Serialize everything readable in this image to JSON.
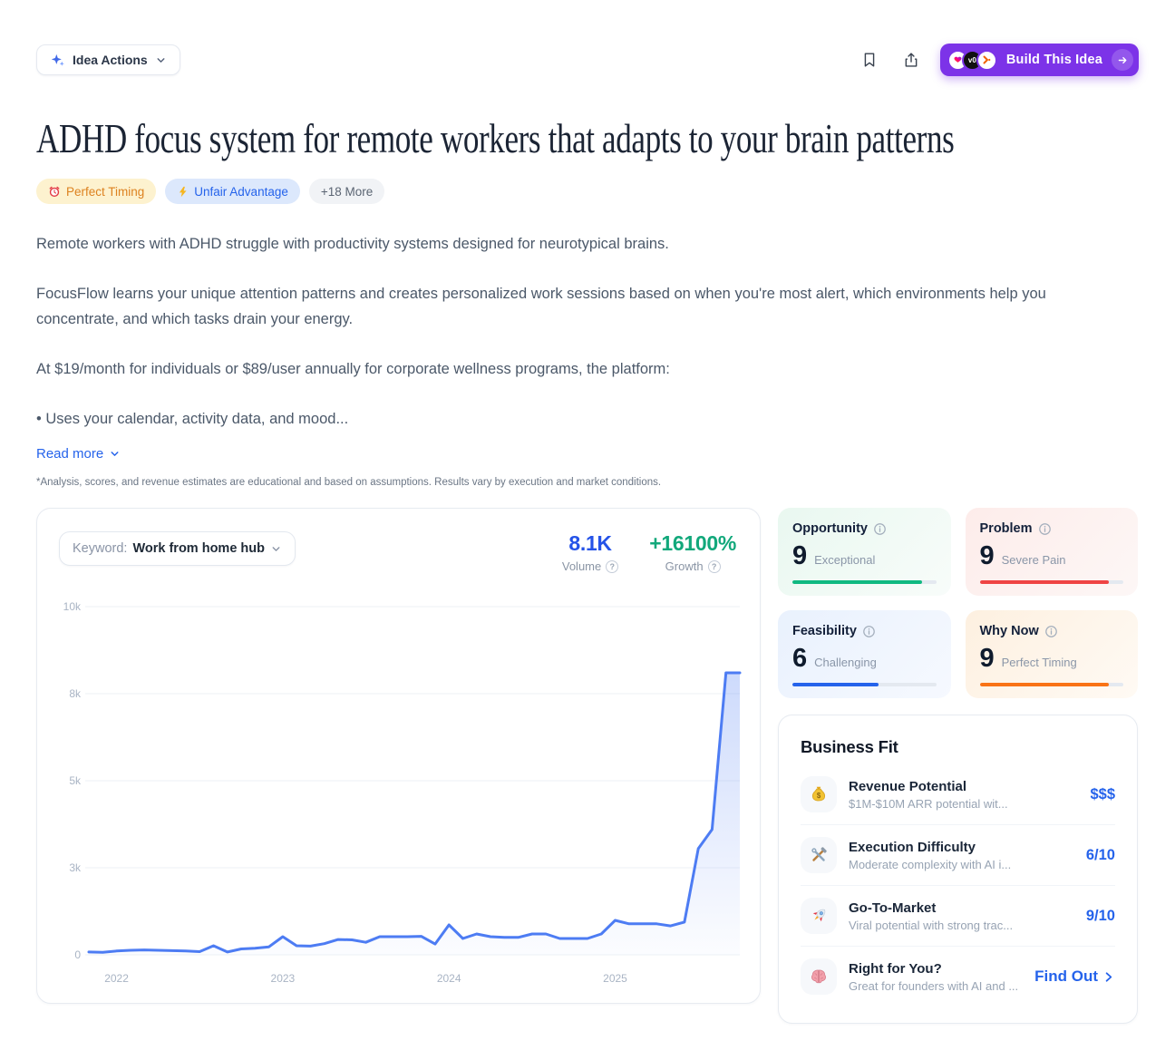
{
  "topbar": {
    "idea_actions_label": "Idea Actions",
    "build_button_label": "Build This Idea"
  },
  "title": "ADHD focus system for remote workers that adapts to your brain patterns",
  "tags": [
    {
      "icon": "alarm-clock",
      "label": "Perfect Timing",
      "style": "amber"
    },
    {
      "icon": "lightning-bolt",
      "label": "Unfair Advantage",
      "style": "blue"
    },
    {
      "icon": null,
      "label": "+18 More",
      "style": "gray"
    }
  ],
  "paragraphs": [
    "Remote workers with ADHD struggle with productivity systems designed for neurotypical brains.",
    "FocusFlow learns your unique attention patterns and creates personalized work sessions based on when you're most alert, which environments help you concentrate, and which tasks drain your energy.",
    "At $19/month for individuals or $89/user annually for corporate wellness programs, the platform:",
    "• Uses your calendar, activity data, and mood..."
  ],
  "read_more_label": "Read more",
  "disclaimer": "*Analysis, scores, and revenue estimates are educational and based on assumptions. Results vary by execution and market conditions.",
  "chart_card": {
    "keyword_label": "Keyword:",
    "keyword_value": "Work from home hub",
    "volume_value": "8.1K",
    "volume_label": "Volume",
    "growth_value": "+16100%",
    "growth_label": "Growth"
  },
  "chart_data": {
    "type": "area",
    "title": "Keyword search volume trend",
    "keyword": "Work from home hub",
    "interval": "monthly",
    "x_start": "2021-11",
    "values": [
      80,
      70,
      110,
      130,
      140,
      130,
      120,
      110,
      90,
      260,
      80,
      170,
      190,
      230,
      520,
      260,
      250,
      320,
      440,
      430,
      360,
      520,
      520,
      520,
      530,
      310,
      860,
      470,
      600,
      520,
      500,
      500,
      600,
      600,
      470,
      470,
      470,
      600,
      990,
      890,
      890,
      890,
      830,
      940,
      3050,
      3600,
      8100,
      8100
    ],
    "x_year_labels": [
      "2022",
      "2023",
      "2024",
      "2025"
    ],
    "x_tick_indices": [
      2,
      14,
      26,
      38
    ],
    "y_ticks": [
      {
        "value": 0,
        "label": "0"
      },
      {
        "value": 2500,
        "label": "3k"
      },
      {
        "value": 5000,
        "label": "5k"
      },
      {
        "value": 7500,
        "label": "8k"
      },
      {
        "value": 10000,
        "label": "10k"
      }
    ],
    "ylim": [
      0,
      10000
    ],
    "grid": true,
    "line_color": "#4d7cf3",
    "volume": 8100,
    "growth_pct": 16100
  },
  "score_cards": [
    {
      "title": "Opportunity",
      "score": "9",
      "label": "Exceptional",
      "percent": 90,
      "bar_color": "#10b981",
      "theme": "green"
    },
    {
      "title": "Problem",
      "score": "9",
      "label": "Severe Pain",
      "percent": 90,
      "bar_color": "#ef4444",
      "theme": "red"
    },
    {
      "title": "Feasibility",
      "score": "6",
      "label": "Challenging",
      "percent": 60,
      "bar_color": "#2563eb",
      "theme": "blue"
    },
    {
      "title": "Why Now",
      "score": "9",
      "label": "Perfect Timing",
      "percent": 90,
      "bar_color": "#f97316",
      "theme": "orange"
    }
  ],
  "business_fit": {
    "title": "Business Fit",
    "rows": [
      {
        "icon": "money-bag",
        "title": "Revenue Potential",
        "subtitle": "$1M-$10M ARR potential wit...",
        "value": "$$$"
      },
      {
        "icon": "hammer-wrench",
        "title": "Execution Difficulty",
        "subtitle": "Moderate complexity with AI i...",
        "value": "6/10"
      },
      {
        "icon": "rocket",
        "title": "Go-To-Market",
        "subtitle": "Viral potential with strong trac...",
        "value": "9/10"
      },
      {
        "icon": "brain",
        "title": "Right for You?",
        "subtitle": "Great for founders with AI and ...",
        "value": "Find Out"
      }
    ]
  },
  "colors": {
    "accent_blue": "#2563eb",
    "volume_blue": "#2553e8",
    "growth_green": "#12a87b",
    "build_purple": "#7c33e8",
    "chart_line": "#4d7cf3"
  },
  "icons": {
    "idea-actions-sparkle": "✦",
    "chevron-down": "⌄",
    "bookmark": "bookmark-outline",
    "share": "box-with-up-arrow",
    "build-arrow": "→",
    "help": "?",
    "info": "i",
    "find-out-chevron": "›",
    "tag-perfect-timing": "⏰",
    "tag-unfair-advantage": "⚡",
    "revenue-potential": "💰",
    "execution-difficulty": "🛠",
    "go-to-market": "🚀",
    "right-for-you": "🧠"
  }
}
